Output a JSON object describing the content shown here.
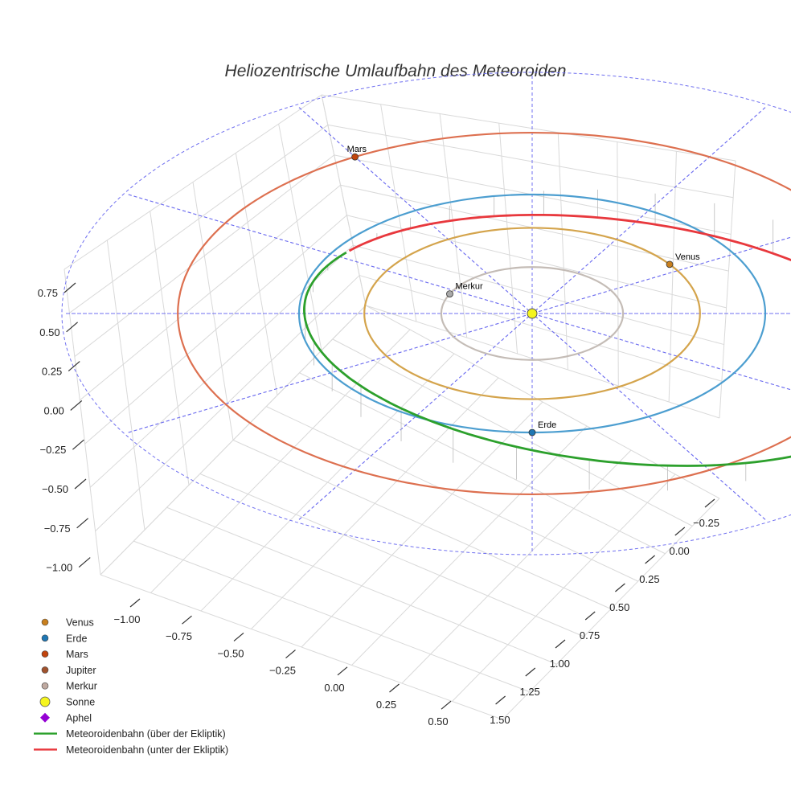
{
  "chart_data": {
    "type": "scatter3d",
    "title": "Heliozentrische Umlaufbahn des Meteoroiden",
    "axes": {
      "x": {
        "ticks": [
          -1.0,
          -0.75,
          -0.5,
          -0.25,
          0.0,
          0.25,
          0.5
        ],
        "tick_labels": [
          "−1.00",
          "−0.75",
          "−0.50",
          "−0.25",
          "0.00",
          "0.25",
          "0.50"
        ]
      },
      "y": {
        "ticks": [
          -0.25,
          0.0,
          0.25,
          0.5,
          0.75,
          1.0,
          1.25,
          1.5
        ],
        "tick_labels": [
          "−0.25",
          "0.00",
          "0.25",
          "0.50",
          "0.75",
          "1.00",
          "1.25",
          "1.50"
        ]
      },
      "z": {
        "ticks": [
          0.75,
          0.5,
          0.25,
          0.0,
          -0.25,
          -0.5,
          -0.75,
          -1.0
        ],
        "tick_labels": [
          "0.75",
          "0.50",
          "0.25",
          "0.00",
          "−0.25",
          "−0.50",
          "−0.75",
          "−1.00"
        ]
      }
    },
    "planet_orbits": [
      {
        "name": "Merkur",
        "radius_au": 0.39,
        "color": "#c4bcb6"
      },
      {
        "name": "Venus",
        "radius_au": 0.72,
        "color": "#d4a44c"
      },
      {
        "name": "Erde",
        "radius_au": 1.0,
        "color": "#4c9ed0"
      },
      {
        "name": "Mars",
        "radius_au": 1.52,
        "color": "#dd7050"
      }
    ],
    "planets": [
      {
        "name": "Venus",
        "color": "#c87f1e",
        "angle_deg": 35
      },
      {
        "name": "Erde",
        "color": "#1f77b4",
        "angle_deg": 270
      },
      {
        "name": "Mars",
        "color": "#c1440e",
        "angle_deg": 120
      },
      {
        "name": "Merkur",
        "color": "#a9a9a9",
        "angle_deg": 155
      }
    ],
    "sun": {
      "name": "Sonne",
      "color": "#f5f51e"
    },
    "aphel": {
      "name": "Aphel",
      "color": "#9400d3"
    },
    "meteoroid_orbit": {
      "above_ecliptic": {
        "name": "Meteoroidenbahn (über der Ekliptik)",
        "color": "#2ca02c"
      },
      "below_ecliptic": {
        "name": "Meteoroidenbahn (unter der Ekliptik)",
        "color": "#e8383d"
      }
    },
    "legend": {
      "position": "bottom-left",
      "entries": [
        {
          "label": "Venus",
          "symbol": "circle",
          "color": "#c87f1e"
        },
        {
          "label": "Erde",
          "symbol": "circle",
          "color": "#1f77b4"
        },
        {
          "label": "Mars",
          "symbol": "circle",
          "color": "#c1440e"
        },
        {
          "label": "Jupiter",
          "symbol": "circle",
          "color": "#a0522d"
        },
        {
          "label": "Merkur",
          "symbol": "circle",
          "color": "#bfa9a0"
        },
        {
          "label": "Sonne",
          "symbol": "circle-large",
          "color": "#f5f51e"
        },
        {
          "label": "Aphel",
          "symbol": "diamond",
          "color": "#9400d3"
        },
        {
          "label": "Meteoroidenbahn (über der Ekliptik)",
          "symbol": "line",
          "color": "#2ca02c"
        },
        {
          "label": "Meteoroidenbahn (unter der Ekliptik)",
          "symbol": "line",
          "color": "#e8383d"
        }
      ]
    }
  }
}
